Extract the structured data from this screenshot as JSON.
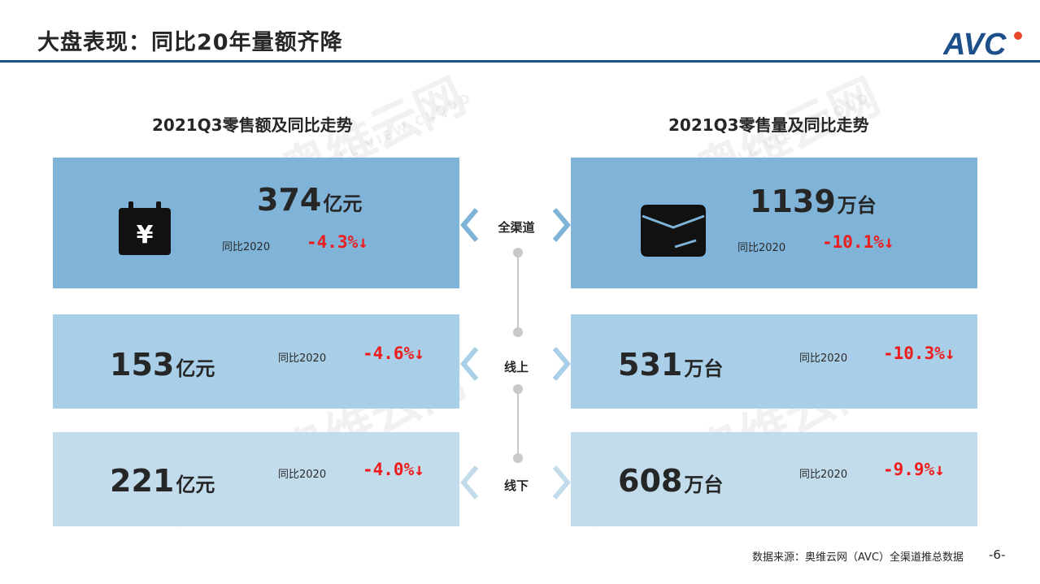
{
  "header": {
    "title": "大盘表现：同比20年量额齐降",
    "logo_text": "AVC"
  },
  "left": {
    "title": "2021Q3零售额及同比走势",
    "rows": [
      {
        "value": "374",
        "unit": "亿元",
        "yoy_label": "同比2020",
        "yoy": "-4.3%↓"
      },
      {
        "value": "153",
        "unit": "亿元",
        "yoy_label": "同比2020",
        "yoy": "-4.6%↓"
      },
      {
        "value": "221",
        "unit": "亿元",
        "yoy_label": "同比2020",
        "yoy": "-4.0%↓"
      }
    ]
  },
  "right": {
    "title": "2021Q3零售量及同比走势",
    "rows": [
      {
        "value": "1139",
        "unit": "万台",
        "yoy_label": "同比2020",
        "yoy": "-10.1%↓"
      },
      {
        "value": "531",
        "unit": "万台",
        "yoy_label": "同比2020",
        "yoy": "-10.3%↓"
      },
      {
        "value": "608",
        "unit": "万台",
        "yoy_label": "同比2020",
        "yoy": "-9.9%↓"
      }
    ]
  },
  "channels": [
    "全渠道",
    "线上",
    "线下"
  ],
  "icons": {
    "left": "yen-calendar-icon",
    "right": "box-package-icon"
  },
  "colors": {
    "accent": "#1d4f8a",
    "card_dark": "#7fb3d8",
    "card_mid": "#a8cfe7",
    "card_light": "#c2dcec",
    "decline": "#ee1c1c",
    "logo_dot": "#e8472b"
  },
  "footer": {
    "source": "数据来源：奥维云网（AVC）全渠道推总数据",
    "page": "-6-"
  }
}
